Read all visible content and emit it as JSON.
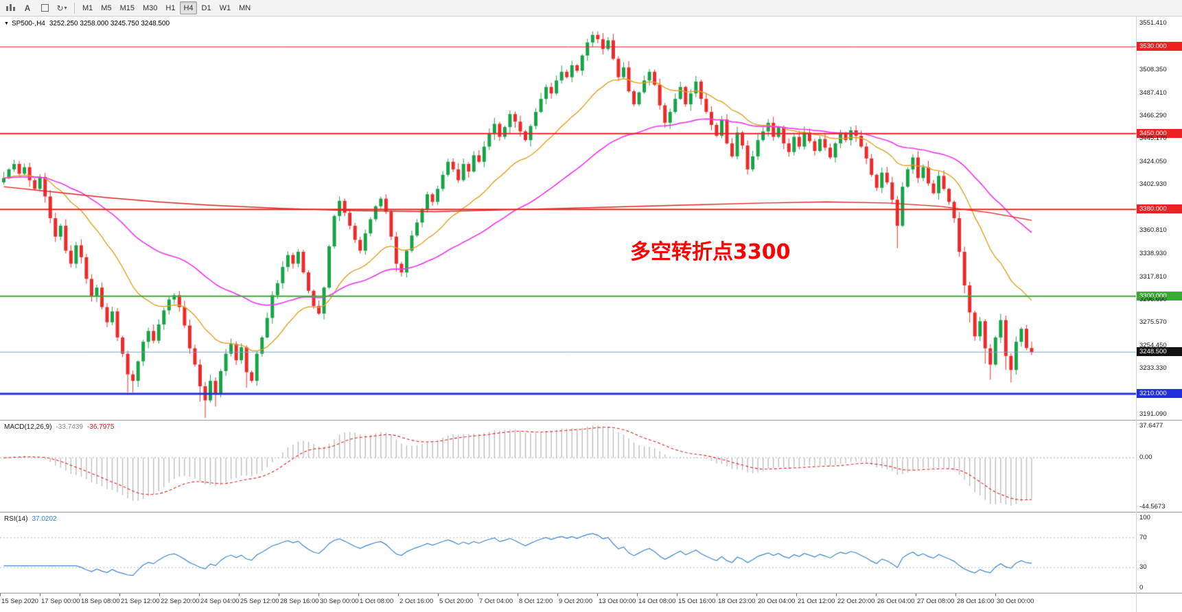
{
  "toolbar": {
    "a_label": "A",
    "refresh_glyph": "↻",
    "caret_glyph": "▾",
    "timeframes": [
      "M1",
      "M5",
      "M15",
      "M30",
      "H1",
      "H4",
      "D1",
      "W1",
      "MN"
    ],
    "active_timeframe": "H4"
  },
  "chart": {
    "title_marker": "▼",
    "symbol_period": "SP500-,H4",
    "ohlc_readout": "3252.250 3258.000 3245.750 3248.500",
    "annotation": {
      "text": "多空转折点3300",
      "color": "#ff0000"
    },
    "levels": [
      {
        "price": 3530.0,
        "label": "3530.000",
        "color": "#ec2222",
        "width": 1
      },
      {
        "price": 3450.0,
        "label": "3450.000",
        "color": "#ec2222",
        "width": 2
      },
      {
        "price": 3380.0,
        "label": "3380.000",
        "color": "#ec2222",
        "width": 2
      },
      {
        "price": 3300.0,
        "label": "3300.000",
        "color": "#3aaa35",
        "width": 2
      },
      {
        "price": 3210.0,
        "label": "3210.000",
        "color": "#2430de",
        "width": 3
      }
    ],
    "current_price": {
      "value": 3248.5,
      "label": "3248.500",
      "line_color": "#7f9db9",
      "badge_color": "#111111"
    },
    "axis_labels": [
      {
        "price": 3551.41,
        "label": "3551.410"
      },
      {
        "price": 3530.0,
        "label": "3530.000",
        "badge": "#ec2222"
      },
      {
        "price": 3508.35,
        "label": "3508.350"
      },
      {
        "price": 3487.41,
        "label": "3487.410"
      },
      {
        "price": 3466.29,
        "label": "3466.290"
      },
      {
        "price": 3450.0,
        "label": "3450.000",
        "badge": "#ec2222"
      },
      {
        "price": 3445.17,
        "label": "3445.170"
      },
      {
        "price": 3424.05,
        "label": "3424.050"
      },
      {
        "price": 3402.93,
        "label": "3402.930"
      },
      {
        "price": 3380.0,
        "label": "3380.000",
        "badge": "#ec2222"
      },
      {
        "price": 3360.81,
        "label": "3360.810"
      },
      {
        "price": 3338.93,
        "label": "3338.930"
      },
      {
        "price": 3317.81,
        "label": "3317.810"
      },
      {
        "price": 3300.0,
        "label": "3300.000",
        "badge": "#3aaa35"
      },
      {
        "price": 3296.69,
        "label": "3296.690"
      },
      {
        "price": 3275.57,
        "label": "3275.570"
      },
      {
        "price": 3254.45,
        "label": "3254.450"
      },
      {
        "price": 3248.5,
        "label": "3248.500",
        "badge": "#111111"
      },
      {
        "price": 3233.33,
        "label": "3233.330"
      },
      {
        "price": 3210.0,
        "label": "3210.000",
        "badge": "#2430de"
      },
      {
        "price": 3191.09,
        "label": "3191.090"
      }
    ]
  },
  "chart_data": {
    "type": "candlestick",
    "symbol": "SP500-",
    "timeframe": "H4",
    "price_range": [
      3186,
      3558
    ],
    "up_color": "#18a348",
    "down_color": "#eb2b2b",
    "ma_orange_period": 21,
    "ma_orange_color": "#dfa022",
    "ma_magenta_period": 55,
    "ma_magenta_color": "#ee3bee",
    "ma_red_color": "#e02020",
    "ma_red_waypoints": [
      [
        0,
        3401
      ],
      [
        0.05,
        3396
      ],
      [
        0.1,
        3391
      ],
      [
        0.15,
        3387
      ],
      [
        0.2,
        3384
      ],
      [
        0.27,
        3381
      ],
      [
        0.34,
        3379
      ],
      [
        0.42,
        3378
      ],
      [
        0.5,
        3380
      ],
      [
        0.58,
        3382
      ],
      [
        0.66,
        3384
      ],
      [
        0.74,
        3386
      ],
      [
        0.8,
        3387
      ],
      [
        0.86,
        3386
      ],
      [
        0.91,
        3383
      ],
      [
        0.96,
        3377
      ],
      [
        1,
        3370
      ]
    ],
    "last_candle": {
      "o": 3252.25,
      "h": 3258.0,
      "l": 3245.75,
      "c": 3248.5
    },
    "closes": [
      3409,
      3417,
      3422,
      3413,
      3419,
      3407,
      3399,
      3410,
      3392,
      3372,
      3355,
      3365,
      3342,
      3330,
      3347,
      3336,
      3316,
      3300,
      3308,
      3290,
      3276,
      3286,
      3262,
      3247,
      3228,
      3222,
      3240,
      3258,
      3268,
      3259,
      3274,
      3287,
      3297,
      3301,
      3290,
      3273,
      3252,
      3237,
      3217,
      3204,
      3222,
      3210,
      3231,
      3247,
      3256,
      3241,
      3253,
      3230,
      3222,
      3247,
      3262,
      3280,
      3301,
      3312,
      3327,
      3338,
      3330,
      3341,
      3322,
      3305,
      3291,
      3284,
      3308,
      3346,
      3374,
      3388,
      3377,
      3365,
      3352,
      3342,
      3358,
      3371,
      3383,
      3390,
      3378,
      3355,
      3330,
      3322,
      3342,
      3356,
      3368,
      3380,
      3394,
      3387,
      3399,
      3412,
      3424,
      3417,
      3407,
      3422,
      3415,
      3430,
      3424,
      3438,
      3450,
      3459,
      3447,
      3456,
      3468,
      3461,
      3452,
      3444,
      3457,
      3470,
      3482,
      3493,
      3487,
      3499,
      3507,
      3502,
      3513,
      3508,
      3522,
      3534,
      3541,
      3537,
      3528,
      3536,
      3519,
      3502,
      3511,
      3489,
      3477,
      3488,
      3499,
      3507,
      3495,
      3476,
      3460,
      3470,
      3482,
      3493,
      3477,
      3487,
      3498,
      3482,
      3470,
      3458,
      3448,
      3463,
      3441,
      3429,
      3451,
      3439,
      3417,
      3429,
      3444,
      3452,
      3460,
      3447,
      3456,
      3441,
      3433,
      3447,
      3438,
      3451,
      3443,
      3434,
      3445,
      3437,
      3428,
      3441,
      3450,
      3444,
      3453,
      3448,
      3438,
      3427,
      3412,
      3400,
      3414,
      3405,
      3389,
      3365,
      3401,
      3417,
      3428,
      3409,
      3419,
      3404,
      3395,
      3411,
      3399,
      3387,
      3372,
      3341,
      3310,
      3285,
      3263,
      3277,
      3252,
      3237,
      3262,
      3278,
      3245,
      3232,
      3258,
      3270,
      3252.3,
      3248.5
    ]
  },
  "macd": {
    "label": "MACD(12,26,9)",
    "value_main": "-33.7439",
    "value_signal": "-36.7975",
    "params": [
      12,
      26,
      9
    ],
    "axis": [
      "37.6477",
      "0.00",
      "-44.5673"
    ],
    "histogram_color": "#bdbdbd",
    "signal_color": "#e02020"
  },
  "rsi": {
    "label": "RSI(14)",
    "value": "37.0202",
    "period": 14,
    "axis": [
      "100",
      "70",
      "30",
      "0"
    ],
    "upper_level": 70,
    "lower_level": 30,
    "line_color": "#3b82d0"
  },
  "time_axis": [
    "15 Sep 2020",
    "17 Sep 00:00",
    "18 Sep 08:00",
    "21 Sep 12:00",
    "22 Sep 20:00",
    "24 Sep 04:00",
    "25 Sep 12:00",
    "28 Sep 16:00",
    "30 Sep 00:00",
    "1 Oct 08:00",
    "2 Oct 16:00",
    "5 Oct 20:00",
    "7 Oct 04:00",
    "8 Oct 12:00",
    "9 Oct 20:00",
    "13 Oct 00:00",
    "14 Oct 08:00",
    "15 Oct 16:00",
    "18 Oct 23:00",
    "20 Oct 04:00",
    "21 Oct 12:00",
    "22 Oct 20:00",
    "26 Oct 04:00",
    "27 Oct 08:00",
    "28 Oct 16:00",
    "30 Oct 00:00"
  ]
}
